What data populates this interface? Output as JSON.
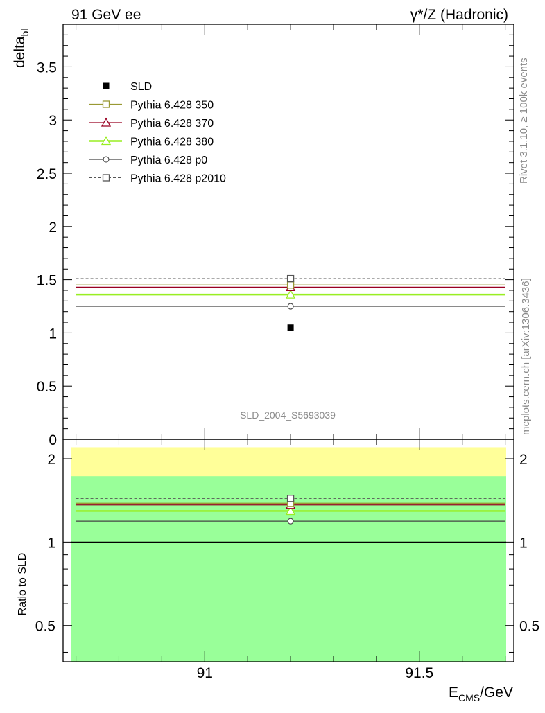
{
  "header": {
    "left": "91 GeV ee",
    "right": "γ*/Z (Hadronic)"
  },
  "side_text": {
    "rivet": "Rivet 3.1.10, ≥ 100k events",
    "mcplots": "mcplots.cern.ch [arXiv:1306.3436]"
  },
  "chart_data": [
    {
      "type": "scatter",
      "panel": "main",
      "ylabel_main": "delta",
      "ylabel_sub": "bl",
      "ylim": [
        0,
        3.9
      ],
      "y_ticks": [
        "0",
        "0.5",
        "1",
        "1.5",
        "2",
        "2.5",
        "3",
        "3.5"
      ],
      "xlim": [
        90.67,
        91.72
      ],
      "analysis_label": "SLD_2004_S5693039",
      "data": {
        "name": "SLD",
        "x": 91.2,
        "y": 1.05
      },
      "series": [
        {
          "name": "Pythia 6.428 350",
          "x": [
            90.7,
            91.7
          ],
          "y": 1.45,
          "marker": "square",
          "color": "#999933",
          "dash": false,
          "width": 1.3
        },
        {
          "name": "Pythia 6.428 370",
          "x": [
            90.7,
            91.7
          ],
          "y": 1.43,
          "marker": "triangle",
          "color": "#990022",
          "dash": false,
          "width": 1.3
        },
        {
          "name": "Pythia 6.428 380",
          "x": [
            90.7,
            91.7
          ],
          "y": 1.36,
          "marker": "triangle",
          "color": "#99ee22",
          "dash": false,
          "width": 2.4
        },
        {
          "name": "Pythia 6.428 p0",
          "x": [
            90.7,
            91.7
          ],
          "y": 1.25,
          "marker": "circle",
          "color": "#444444",
          "dash": false,
          "width": 1.2
        },
        {
          "name": "Pythia 6.428 p2010",
          "x": [
            90.7,
            91.7
          ],
          "y": 1.51,
          "marker": "square",
          "color": "#555555",
          "dash": true,
          "width": 1.1
        }
      ],
      "legend_position": "top-left"
    },
    {
      "type": "scatter",
      "panel": "ratio",
      "ylabel": "Ratio to SLD",
      "scale": "log",
      "ylim": [
        0.37,
        2.35
      ],
      "y_ticks": [
        "0.5",
        "1",
        "2"
      ],
      "x_ticks": [
        "91",
        "91.5"
      ],
      "xlabel_main": "E",
      "xlabel_sub": "CMS",
      "xlabel_unit": "/GeV",
      "bands": [
        {
          "name": "2-sigma",
          "low": 0.37,
          "high": 2.2,
          "color": "#ffff99"
        },
        {
          "name": "1-sigma",
          "low": 0.37,
          "high": 1.73,
          "color": "#99ff99"
        }
      ],
      "reference": 1.0,
      "series_ratios": [
        1.381,
        1.362,
        1.295,
        1.19,
        1.438
      ]
    }
  ]
}
